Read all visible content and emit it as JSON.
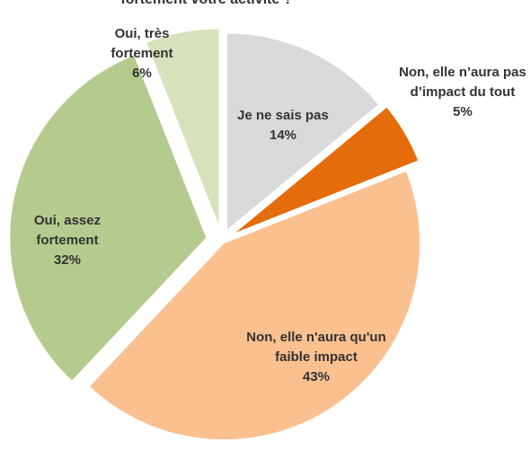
{
  "chart_data": {
    "type": "pie",
    "title": "fortement votre activité ?",
    "categories": [
      "Je ne sais pas",
      "Non, elle n’aura pas d’impact du tout",
      "Non, elle n'aura qu'un faible impact",
      "Oui, assez fortement",
      "Oui, très fortement"
    ],
    "values": [
      14,
      5,
      43,
      32,
      6
    ],
    "value_labels": [
      "14%",
      "5%",
      "43%",
      "32%",
      "6%"
    ],
    "colors": [
      "#d9d9d9",
      "#e46c0a",
      "#fac090",
      "#b5ca8d",
      "#d5e2bc"
    ]
  }
}
